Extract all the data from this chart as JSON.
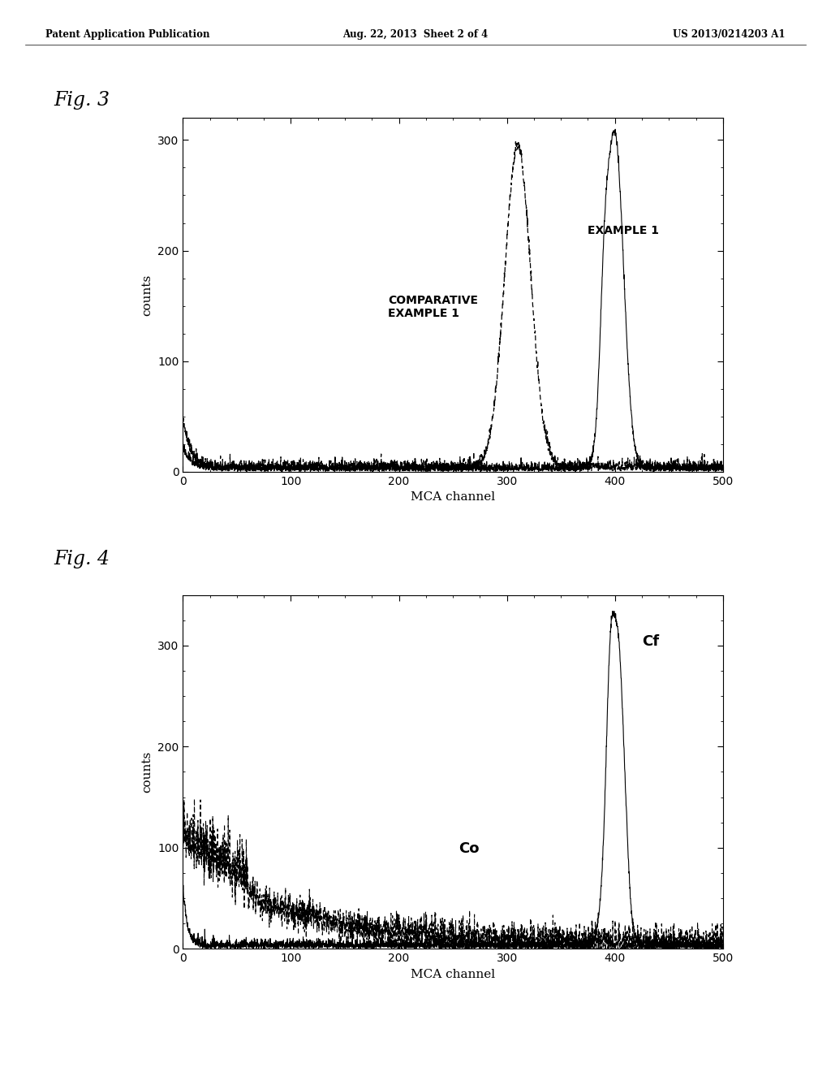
{
  "header_left": "Patent Application Publication",
  "header_center": "Aug. 22, 2013  Sheet 2 of 4",
  "header_right": "US 2013/0214203 A1",
  "fig3_label": "Fig. 3",
  "fig4_label": "Fig. 4",
  "xlabel": "MCA channel",
  "ylabel": "counts",
  "fig3_xlim": [
    0,
    500
  ],
  "fig3_ylim": [
    0,
    320
  ],
  "fig4_xlim": [
    0,
    500
  ],
  "fig4_ylim": [
    0,
    350
  ],
  "fig3_xticks": [
    0,
    100,
    200,
    300,
    400,
    500
  ],
  "fig3_yticks": [
    0,
    100,
    200,
    300
  ],
  "fig4_xticks": [
    0,
    100,
    200,
    300,
    400,
    500
  ],
  "fig4_yticks": [
    0,
    100,
    200,
    300
  ],
  "background": "#ffffff",
  "annotation_example1": "EXAMPLE 1",
  "annotation_comp": "COMPARATIVE\nEXAMPLE 1",
  "annotation_cf": "Cf",
  "annotation_co": "Co"
}
